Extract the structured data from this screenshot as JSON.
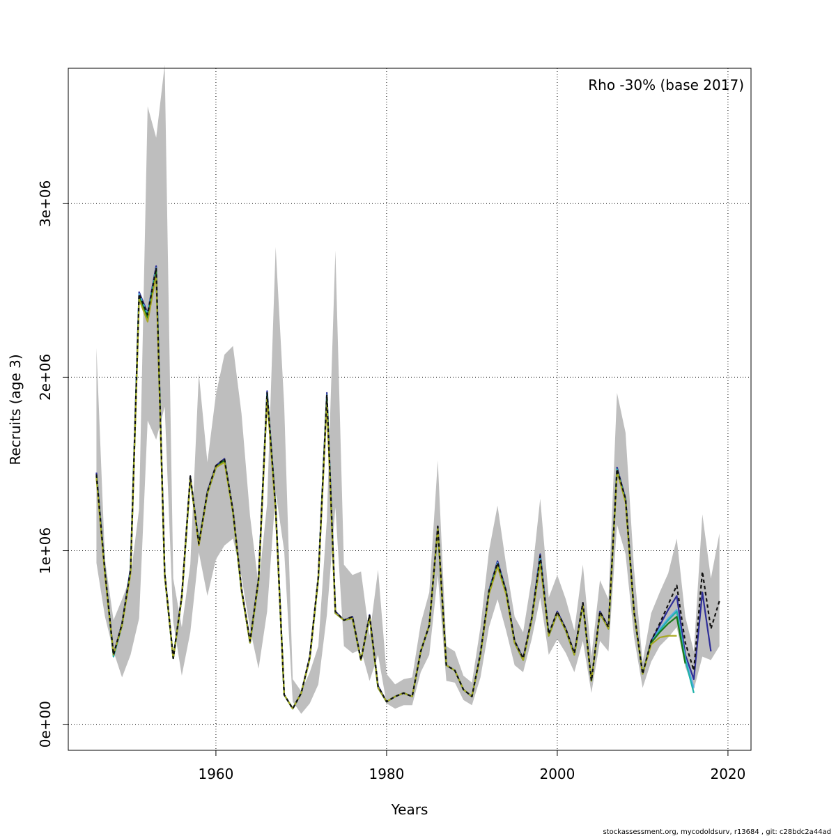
{
  "chart_data": {
    "type": "line",
    "xlabel": "Years",
    "ylabel": "Recruits (age 3)",
    "legend_text": "Rho -30% (base 2017)",
    "legend_position": "top-right",
    "footer": "stockassessment.org, mycodoldsurv, r13684 , git: c28bdc2a44ad",
    "xlim": [
      1942.7,
      2022.7
    ],
    "ylim": [
      -150000,
      3780000
    ],
    "x_ticks": [
      1960,
      1980,
      2000,
      2020
    ],
    "x_tick_labels": [
      "1960",
      "1980",
      "2000",
      "2020"
    ],
    "y_ticks": [
      0,
      1000000,
      2000000,
      3000000
    ],
    "y_tick_labels": [
      "0e+00",
      "1e+06",
      "2e+06",
      "3e+06"
    ],
    "grid": true,
    "band": {
      "color": "#bebebe",
      "x": [
        1946,
        1947,
        1948,
        1949,
        1950,
        1951,
        1952,
        1953,
        1954,
        1955,
        1956,
        1957,
        1958,
        1959,
        1960,
        1961,
        1962,
        1963,
        1964,
        1965,
        1966,
        1967,
        1968,
        1969,
        1970,
        1971,
        1972,
        1973,
        1974,
        1975,
        1976,
        1977,
        1978,
        1979,
        1980,
        1981,
        1982,
        1983,
        1984,
        1985,
        1986,
        1987,
        1988,
        1989,
        1990,
        1991,
        1992,
        1993,
        1994,
        1995,
        1996,
        1997,
        1998,
        1999,
        2000,
        2001,
        2002,
        2003,
        2004,
        2005,
        2006,
        2007,
        2008,
        2009,
        2010,
        2011,
        2012,
        2013,
        2014,
        2015,
        2016,
        2017,
        2018,
        2019
      ],
      "upper": [
        2170000,
        950000,
        600000,
        720000,
        850000,
        1240000,
        3560000,
        3380000,
        3800000,
        840000,
        560000,
        920000,
        2020000,
        1510000,
        1900000,
        2130000,
        2180000,
        1790000,
        1200000,
        800000,
        1270000,
        2750000,
        1840000,
        260000,
        190000,
        300000,
        450000,
        1180000,
        2730000,
        920000,
        860000,
        880000,
        510000,
        890000,
        290000,
        230000,
        260000,
        270000,
        580000,
        760000,
        1520000,
        450000,
        420000,
        280000,
        240000,
        560000,
        1000000,
        1260000,
        920000,
        620000,
        530000,
        840000,
        1300000,
        730000,
        860000,
        720000,
        540000,
        920000,
        390000,
        830000,
        720000,
        1910000,
        1680000,
        890000,
        360000,
        640000,
        760000,
        870000,
        1070000,
        620000,
        420000,
        1210000,
        840000,
        1100000
      ],
      "lower": [
        930000,
        620000,
        420000,
        270000,
        400000,
        610000,
        1750000,
        1640000,
        1830000,
        590000,
        280000,
        530000,
        990000,
        740000,
        950000,
        1030000,
        1070000,
        850000,
        550000,
        320000,
        650000,
        1340000,
        1000000,
        130000,
        60000,
        120000,
        230000,
        630000,
        1250000,
        450000,
        410000,
        430000,
        250000,
        400000,
        120000,
        90000,
        110000,
        110000,
        300000,
        400000,
        860000,
        250000,
        240000,
        140000,
        110000,
        270000,
        560000,
        720000,
        540000,
        340000,
        300000,
        490000,
        730000,
        400000,
        490000,
        410000,
        300000,
        480000,
        180000,
        480000,
        420000,
        1150000,
        980000,
        500000,
        210000,
        360000,
        450000,
        500000,
        560000,
        330000,
        200000,
        390000,
        370000,
        450000
      ]
    },
    "series": [
      {
        "name": "",
        "color": "#2e2e98",
        "style": "solid",
        "x": [
          1946,
          1947,
          1948,
          1949,
          1950,
          1951,
          1952,
          1953,
          1954,
          1955,
          1956,
          1957,
          1958,
          1959,
          1960,
          1961,
          1962,
          1963,
          1964,
          1965,
          1966,
          1967,
          1968,
          1969,
          1970,
          1971,
          1972,
          1973,
          1974,
          1975,
          1976,
          1977,
          1978,
          1979,
          1980,
          1981,
          1982,
          1983,
          1984,
          1985,
          1986,
          1987,
          1988,
          1989,
          1990,
          1991,
          1992,
          1993,
          1994,
          1995,
          1996,
          1997,
          1998,
          1999,
          2000,
          2001,
          2002,
          2003,
          2004,
          2005,
          2006,
          2007,
          2008,
          2009,
          2010,
          2011,
          2012,
          2013,
          2014,
          2015,
          2016,
          2017,
          2018
        ],
        "y": [
          1450000,
          880000,
          400000,
          580000,
          900000,
          2490000,
          2370000,
          2640000,
          870000,
          380000,
          740000,
          1430000,
          1040000,
          1340000,
          1490000,
          1530000,
          1230000,
          780000,
          480000,
          840000,
          1920000,
          1250000,
          170000,
          90000,
          180000,
          390000,
          850000,
          1910000,
          650000,
          600000,
          620000,
          370000,
          630000,
          220000,
          130000,
          160000,
          180000,
          160000,
          420000,
          570000,
          1140000,
          340000,
          310000,
          200000,
          160000,
          410000,
          770000,
          940000,
          770000,
          480000,
          380000,
          610000,
          980000,
          520000,
          650000,
          550000,
          410000,
          700000,
          250000,
          650000,
          560000,
          1480000,
          1300000,
          650000,
          290000,
          480000,
          570000,
          660000,
          740000,
          400000,
          260000,
          760000,
          420000
        ]
      },
      {
        "name": "",
        "color": "#5aaee8",
        "style": "solid",
        "x": [
          1946,
          1947,
          1948,
          1949,
          1950,
          1951,
          1952,
          1953,
          1954,
          1955,
          1956,
          1957,
          1958,
          1959,
          1960,
          1961,
          1962,
          1963,
          1964,
          1965,
          1966,
          1967,
          1968,
          1969,
          1970,
          1971,
          1972,
          1973,
          1974,
          1975,
          1976,
          1977,
          1978,
          1979,
          1980,
          1981,
          1982,
          1983,
          1984,
          1985,
          1986,
          1987,
          1988,
          1989,
          1990,
          1991,
          1992,
          1993,
          1994,
          1995,
          1996,
          1997,
          1998,
          1999,
          2000,
          2001,
          2002,
          2003,
          2004,
          2005,
          2006,
          2007,
          2008,
          2009,
          2010,
          2011,
          2012,
          2013,
          2014,
          2015,
          2016
        ],
        "y": [
          1440000,
          870000,
          390000,
          570000,
          890000,
          2480000,
          2360000,
          2630000,
          860000,
          380000,
          730000,
          1420000,
          1040000,
          1330000,
          1480000,
          1520000,
          1220000,
          770000,
          470000,
          830000,
          1910000,
          1240000,
          170000,
          90000,
          180000,
          380000,
          840000,
          1900000,
          640000,
          600000,
          610000,
          370000,
          620000,
          210000,
          130000,
          160000,
          180000,
          160000,
          420000,
          570000,
          1130000,
          340000,
          310000,
          200000,
          160000,
          410000,
          760000,
          930000,
          760000,
          470000,
          370000,
          600000,
          960000,
          520000,
          640000,
          540000,
          400000,
          690000,
          250000,
          640000,
          550000,
          1470000,
          1290000,
          640000,
          290000,
          470000,
          550000,
          610000,
          660000,
          380000,
          210000
        ]
      },
      {
        "name": "",
        "color": "#20b2aa",
        "style": "solid",
        "x": [
          1946,
          1947,
          1948,
          1949,
          1950,
          1951,
          1952,
          1953,
          1954,
          1955,
          1956,
          1957,
          1958,
          1959,
          1960,
          1961,
          1962,
          1963,
          1964,
          1965,
          1966,
          1967,
          1968,
          1969,
          1970,
          1971,
          1972,
          1973,
          1974,
          1975,
          1976,
          1977,
          1978,
          1979,
          1980,
          1981,
          1982,
          1983,
          1984,
          1985,
          1986,
          1987,
          1988,
          1989,
          1990,
          1991,
          1992,
          1993,
          1994,
          1995,
          1996,
          1997,
          1998,
          1999,
          2000,
          2001,
          2002,
          2003,
          2004,
          2005,
          2006,
          2007,
          2008,
          2009,
          2010,
          2011,
          2012,
          2013,
          2014,
          2015,
          2016
        ],
        "y": [
          1430000,
          870000,
          390000,
          570000,
          880000,
          2470000,
          2350000,
          2620000,
          860000,
          380000,
          730000,
          1420000,
          1040000,
          1330000,
          1480000,
          1520000,
          1220000,
          770000,
          470000,
          830000,
          1900000,
          1240000,
          170000,
          90000,
          180000,
          380000,
          840000,
          1890000,
          640000,
          600000,
          610000,
          370000,
          620000,
          210000,
          130000,
          160000,
          180000,
          160000,
          420000,
          570000,
          1130000,
          340000,
          310000,
          200000,
          160000,
          400000,
          760000,
          920000,
          760000,
          470000,
          370000,
          600000,
          950000,
          510000,
          640000,
          540000,
          400000,
          690000,
          250000,
          640000,
          550000,
          1470000,
          1290000,
          640000,
          290000,
          470000,
          540000,
          600000,
          650000,
          370000,
          180000
        ]
      },
      {
        "name": "",
        "color": "#1a7a1a",
        "style": "solid",
        "x": [
          1946,
          1947,
          1948,
          1949,
          1950,
          1951,
          1952,
          1953,
          1954,
          1955,
          1956,
          1957,
          1958,
          1959,
          1960,
          1961,
          1962,
          1963,
          1964,
          1965,
          1966,
          1967,
          1968,
          1969,
          1970,
          1971,
          1972,
          1973,
          1974,
          1975,
          1976,
          1977,
          1978,
          1979,
          1980,
          1981,
          1982,
          1983,
          1984,
          1985,
          1986,
          1987,
          1988,
          1989,
          1990,
          1991,
          1992,
          1993,
          1994,
          1995,
          1996,
          1997,
          1998,
          1999,
          2000,
          2001,
          2002,
          2003,
          2004,
          2005,
          2006,
          2007,
          2008,
          2009,
          2010,
          2011,
          2012,
          2013,
          2014,
          2015
        ],
        "y": [
          1430000,
          870000,
          400000,
          570000,
          880000,
          2460000,
          2340000,
          2610000,
          860000,
          380000,
          730000,
          1420000,
          1040000,
          1330000,
          1480000,
          1520000,
          1220000,
          770000,
          470000,
          830000,
          1890000,
          1240000,
          170000,
          90000,
          180000,
          380000,
          840000,
          1880000,
          640000,
          600000,
          610000,
          370000,
          620000,
          210000,
          130000,
          160000,
          180000,
          160000,
          420000,
          570000,
          1130000,
          340000,
          310000,
          200000,
          160000,
          400000,
          760000,
          920000,
          760000,
          470000,
          370000,
          600000,
          940000,
          510000,
          640000,
          540000,
          400000,
          690000,
          250000,
          640000,
          550000,
          1460000,
          1290000,
          640000,
          290000,
          470000,
          530000,
          580000,
          620000,
          350000
        ]
      },
      {
        "name": "",
        "color": "#a8a820",
        "style": "solid",
        "x": [
          1946,
          1947,
          1948,
          1949,
          1950,
          1951,
          1952,
          1953,
          1954,
          1955,
          1956,
          1957,
          1958,
          1959,
          1960,
          1961,
          1962,
          1963,
          1964,
          1965,
          1966,
          1967,
          1968,
          1969,
          1970,
          1971,
          1972,
          1973,
          1974,
          1975,
          1976,
          1977,
          1978,
          1979,
          1980,
          1981,
          1982,
          1983,
          1984,
          1985,
          1986,
          1987,
          1988,
          1989,
          1990,
          1991,
          1992,
          1993,
          1994,
          1995,
          1996,
          1997,
          1998,
          1999,
          2000,
          2001,
          2002,
          2003,
          2004,
          2005,
          2006,
          2007,
          2008,
          2009,
          2010,
          2011,
          2012,
          2013,
          2014
        ],
        "y": [
          1420000,
          860000,
          400000,
          570000,
          870000,
          2450000,
          2320000,
          2590000,
          860000,
          380000,
          730000,
          1420000,
          1030000,
          1330000,
          1480000,
          1510000,
          1220000,
          770000,
          470000,
          830000,
          1880000,
          1230000,
          170000,
          90000,
          180000,
          380000,
          840000,
          1860000,
          640000,
          600000,
          610000,
          370000,
          620000,
          210000,
          130000,
          160000,
          180000,
          160000,
          420000,
          570000,
          1130000,
          340000,
          310000,
          200000,
          160000,
          400000,
          750000,
          910000,
          750000,
          470000,
          370000,
          600000,
          930000,
          510000,
          640000,
          540000,
          400000,
          690000,
          250000,
          640000,
          550000,
          1460000,
          1280000,
          640000,
          290000,
          460000,
          500000,
          510000,
          510000
        ]
      },
      {
        "name": "",
        "color": "#111111",
        "style": "dashed",
        "x": [
          1946,
          1947,
          1948,
          1949,
          1950,
          1951,
          1952,
          1953,
          1954,
          1955,
          1956,
          1957,
          1958,
          1959,
          1960,
          1961,
          1962,
          1963,
          1964,
          1965,
          1966,
          1967,
          1968,
          1969,
          1970,
          1971,
          1972,
          1973,
          1974,
          1975,
          1976,
          1977,
          1978,
          1979,
          1980,
          1981,
          1982,
          1983,
          1984,
          1985,
          1986,
          1987,
          1988,
          1989,
          1990,
          1991,
          1992,
          1993,
          1994,
          1995,
          1996,
          1997,
          1998,
          1999,
          2000,
          2001,
          2002,
          2003,
          2004,
          2005,
          2006,
          2007,
          2008,
          2009,
          2010,
          2011,
          2012,
          2013,
          2014,
          2015,
          2016,
          2017,
          2018,
          2019
        ],
        "y": [
          1440000,
          880000,
          400000,
          580000,
          890000,
          2480000,
          2360000,
          2630000,
          870000,
          380000,
          740000,
          1430000,
          1040000,
          1340000,
          1490000,
          1530000,
          1230000,
          780000,
          480000,
          840000,
          1910000,
          1250000,
          170000,
          90000,
          180000,
          390000,
          850000,
          1900000,
          650000,
          600000,
          620000,
          370000,
          630000,
          220000,
          130000,
          160000,
          180000,
          160000,
          420000,
          570000,
          1140000,
          340000,
          310000,
          200000,
          160000,
          410000,
          770000,
          930000,
          770000,
          480000,
          380000,
          610000,
          970000,
          520000,
          650000,
          550000,
          410000,
          700000,
          250000,
          650000,
          560000,
          1470000,
          1300000,
          650000,
          290000,
          480000,
          580000,
          690000,
          800000,
          470000,
          310000,
          880000,
          550000,
          710000
        ]
      }
    ]
  }
}
